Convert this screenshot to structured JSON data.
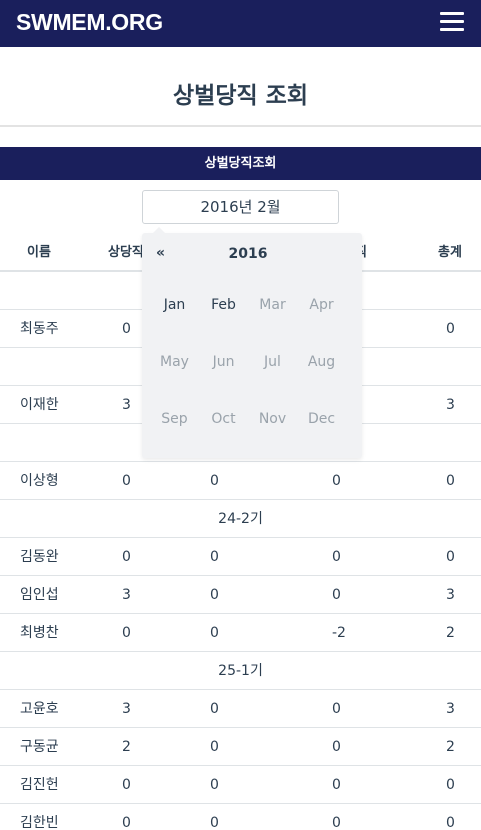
{
  "nav": {
    "brand": "SWMEM.ORG"
  },
  "page": {
    "title": "상벌당직 조회"
  },
  "section": {
    "header": "상벌당직조회"
  },
  "month_input": {
    "value": "2016년 2월"
  },
  "table": {
    "headers": {
      "name": "이름",
      "col1": "상당직",
      "col3": "직",
      "total": "총계"
    },
    "rows": [
      {
        "type": "blank"
      },
      {
        "type": "data",
        "name": "최동주",
        "c1": "0",
        "c2": "",
        "c3": "",
        "total": "0"
      },
      {
        "type": "blank"
      },
      {
        "type": "data",
        "name": "이재한",
        "c1": "3",
        "c2": "",
        "c3": "",
        "total": "3"
      },
      {
        "type": "blank"
      },
      {
        "type": "data",
        "name": "이상형",
        "c1": "0",
        "c2": "0",
        "c3": "0",
        "total": "0"
      },
      {
        "type": "group",
        "label": "24-2기"
      },
      {
        "type": "data",
        "name": "김동완",
        "c1": "0",
        "c2": "0",
        "c3": "0",
        "total": "0"
      },
      {
        "type": "data",
        "name": "임인섭",
        "c1": "3",
        "c2": "0",
        "c3": "0",
        "total": "3"
      },
      {
        "type": "data",
        "name": "최병찬",
        "c1": "0",
        "c2": "0",
        "c3": "-2",
        "total": "2"
      },
      {
        "type": "group",
        "label": "25-1기"
      },
      {
        "type": "data",
        "name": "고윤호",
        "c1": "3",
        "c2": "0",
        "c3": "0",
        "total": "3"
      },
      {
        "type": "data",
        "name": "구동균",
        "c1": "2",
        "c2": "0",
        "c3": "0",
        "total": "2"
      },
      {
        "type": "data",
        "name": "김진헌",
        "c1": "0",
        "c2": "0",
        "c3": "0",
        "total": "0"
      },
      {
        "type": "data",
        "name": "김한빈",
        "c1": "0",
        "c2": "0",
        "c3": "0",
        "total": "0"
      }
    ]
  },
  "datepicker": {
    "prev": "«",
    "year": "2016",
    "months": [
      {
        "label": "Jan",
        "enabled": true
      },
      {
        "label": "Feb",
        "enabled": true
      },
      {
        "label": "Mar",
        "enabled": false
      },
      {
        "label": "Apr",
        "enabled": false
      },
      {
        "label": "May",
        "enabled": false
      },
      {
        "label": "Jun",
        "enabled": false
      },
      {
        "label": "Jul",
        "enabled": false
      },
      {
        "label": "Aug",
        "enabled": false
      },
      {
        "label": "Sep",
        "enabled": false
      },
      {
        "label": "Oct",
        "enabled": false
      },
      {
        "label": "Nov",
        "enabled": false
      },
      {
        "label": "Dec",
        "enabled": false
      }
    ]
  },
  "colors": {
    "navy": "#1a1f5c",
    "text": "#2c3e50",
    "muted": "#9aa3ab",
    "popup": "#f1f2f4"
  }
}
